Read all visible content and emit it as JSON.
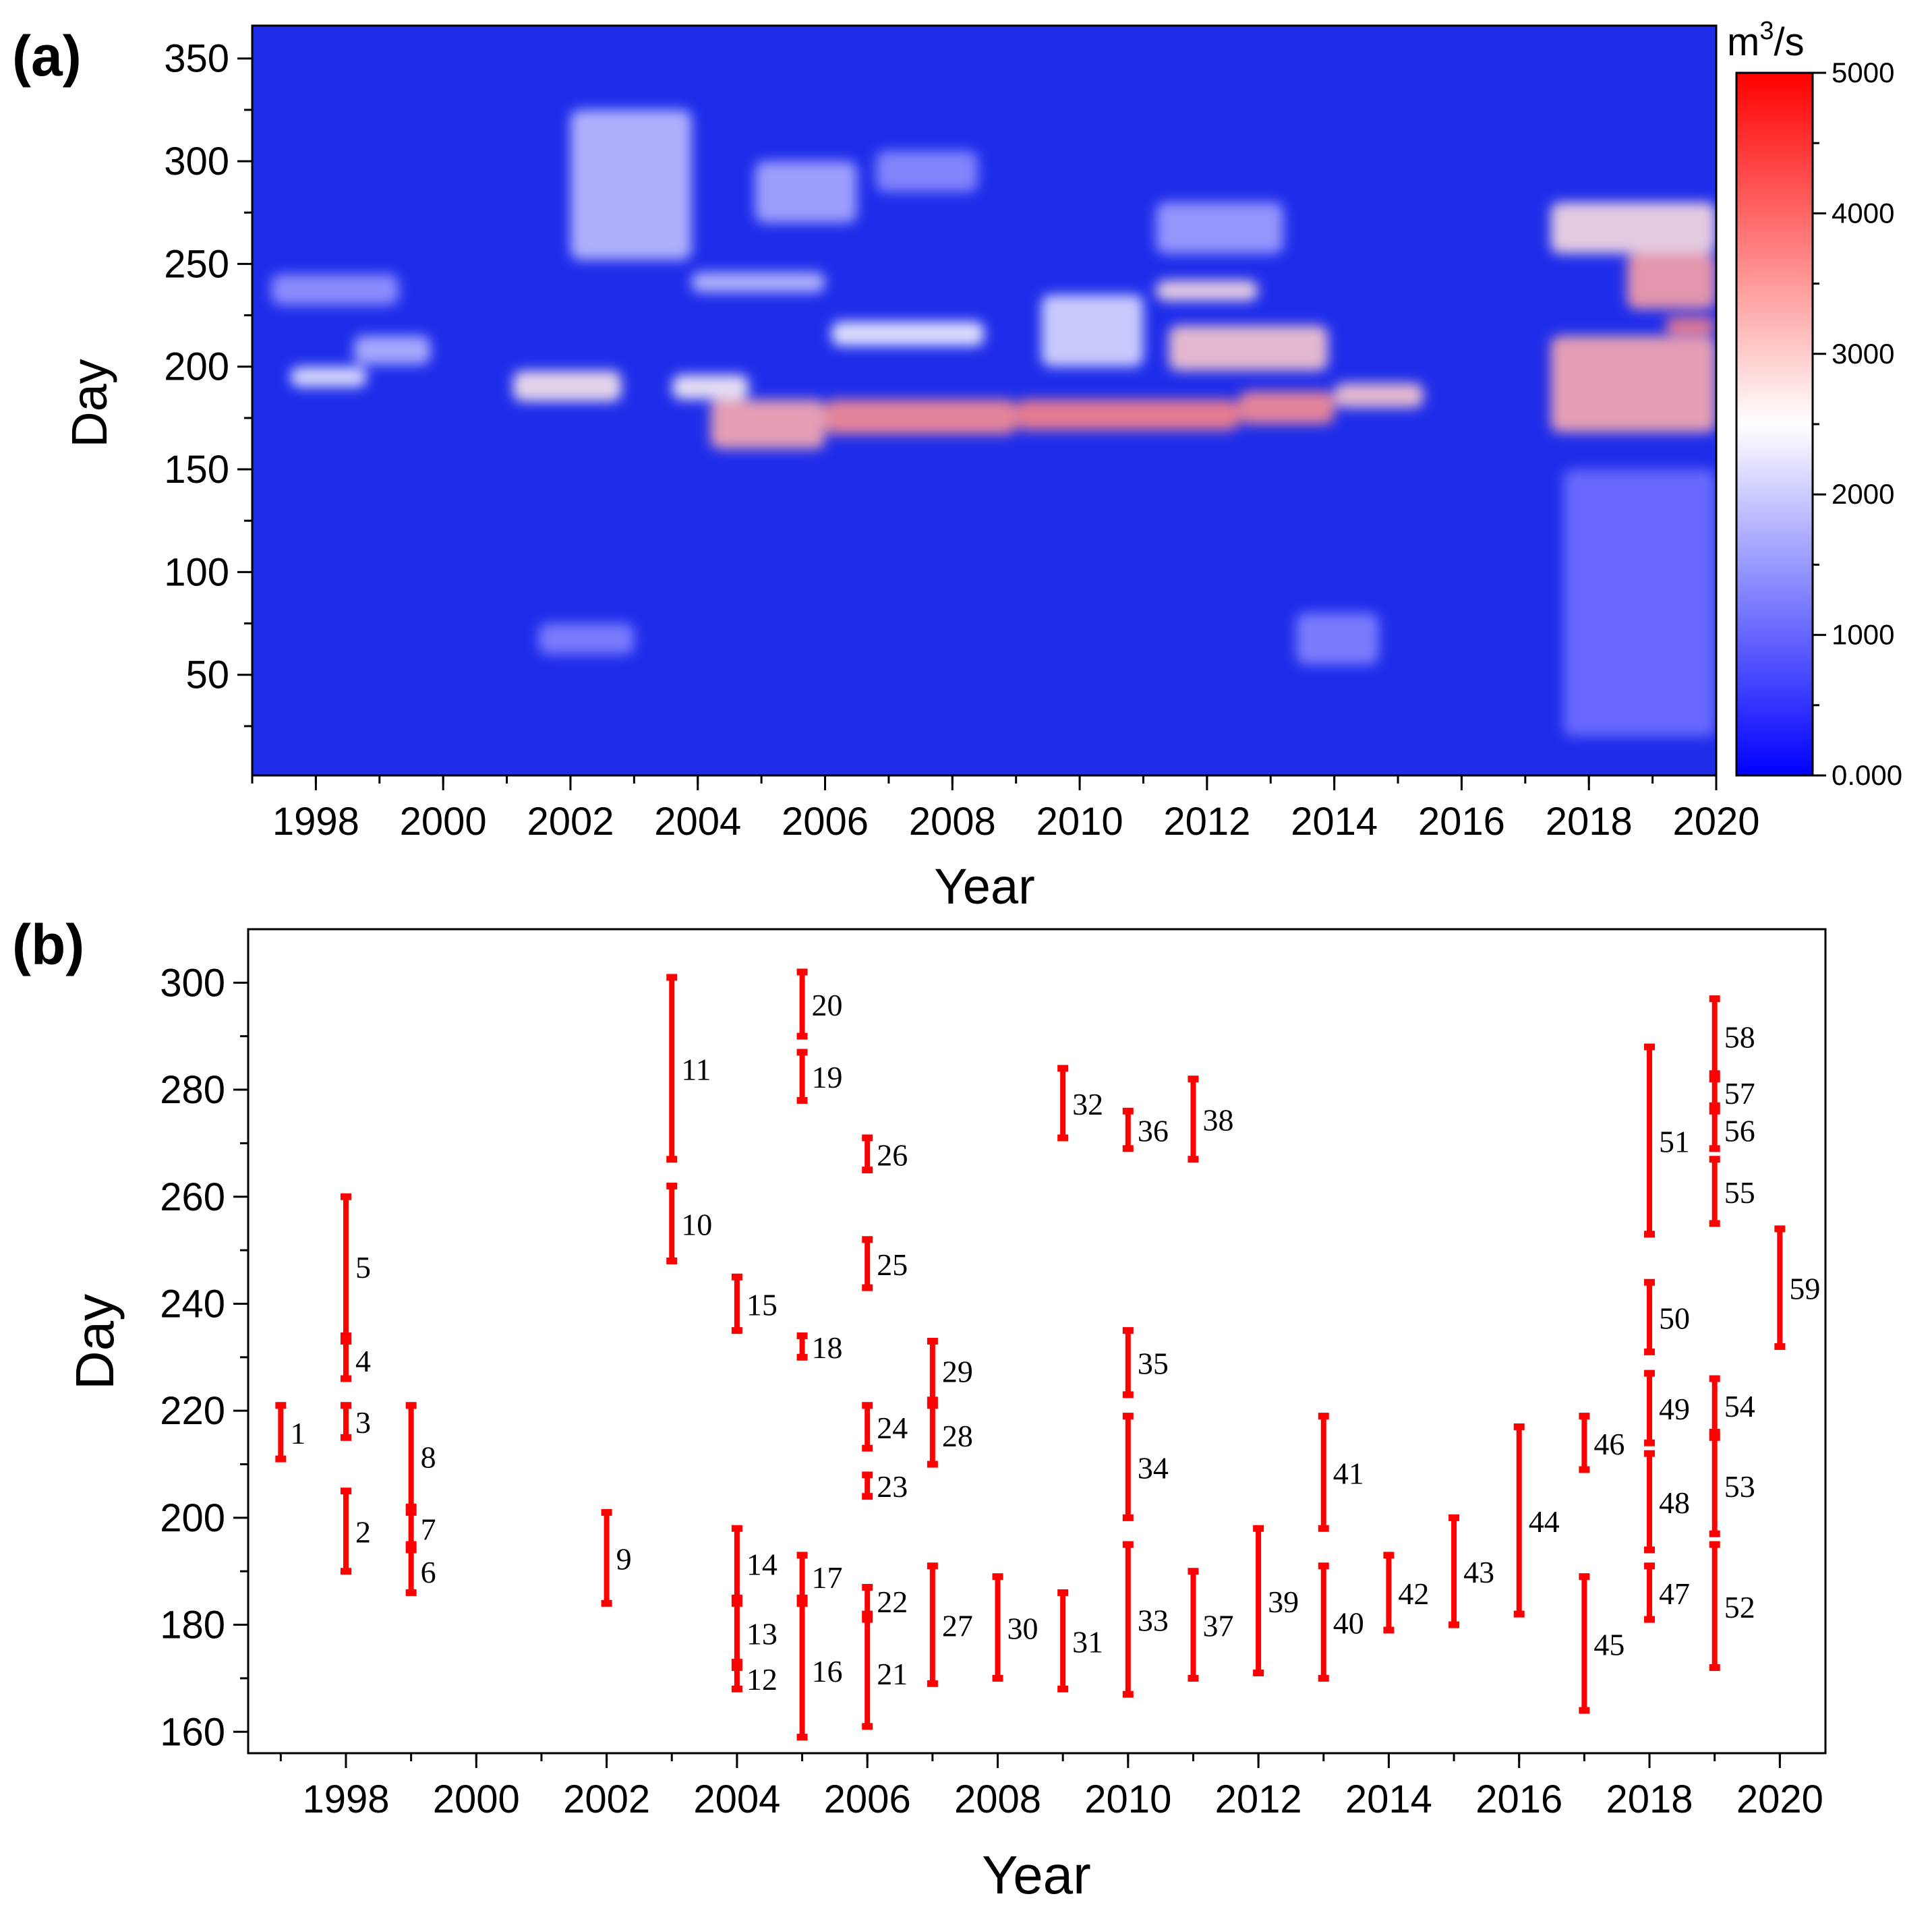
{
  "chart_data": [
    {
      "type": "heatmap",
      "panel_label": "(a)",
      "xlabel": "Year",
      "ylabel": "Day",
      "xlim": [
        1997,
        2020
      ],
      "ylim": [
        1,
        366
      ],
      "xticks": [
        {
          "value": 1998,
          "label": "1998"
        },
        {
          "value": 2000,
          "label": "2000"
        },
        {
          "value": 2002,
          "label": "2002"
        },
        {
          "value": 2004,
          "label": "2004"
        },
        {
          "value": 2006,
          "label": "2006"
        },
        {
          "value": 2008,
          "label": "2008"
        },
        {
          "value": 2010,
          "label": "2010"
        },
        {
          "value": 2012,
          "label": "2012"
        },
        {
          "value": 2014,
          "label": "2014"
        },
        {
          "value": 2016,
          "label": "2016"
        },
        {
          "value": 2018,
          "label": "2018"
        },
        {
          "value": 2020,
          "label": "2020"
        }
      ],
      "yticks": [
        {
          "value": 50,
          "label": "50"
        },
        {
          "value": 100,
          "label": "100"
        },
        {
          "value": 150,
          "label": "150"
        },
        {
          "value": 200,
          "label": "200"
        },
        {
          "value": 250,
          "label": "250"
        },
        {
          "value": 300,
          "label": "300"
        },
        {
          "value": 350,
          "label": "350"
        }
      ],
      "colorbar": {
        "unit_base": "m",
        "unit_sup": "3",
        "unit_tail": "/s",
        "range": [
          0,
          5000
        ],
        "ticks": [
          {
            "value": 0,
            "label": "0.000"
          },
          {
            "value": 1000,
            "label": "1000"
          },
          {
            "value": 2000,
            "label": "2000"
          },
          {
            "value": 3000,
            "label": "3000"
          },
          {
            "value": 4000,
            "label": "4000"
          },
          {
            "value": 5000,
            "label": "5000"
          }
        ],
        "colors": {
          "low": "#0000ff",
          "mid": "#ffffff",
          "high": "#ff0000"
        }
      },
      "background_value": 300,
      "hotspots": [
        {
          "x": [
            2004.2,
            2006.0
          ],
          "day": [
            160,
            184
          ],
          "value": 3300
        },
        {
          "x": [
            2006.0,
            2009.0
          ],
          "day": [
            167,
            184
          ],
          "value": 3600
        },
        {
          "x": [
            2009.0,
            2012.5
          ],
          "day": [
            169,
            184
          ],
          "value": 3700
        },
        {
          "x": [
            2012.5,
            2014.0
          ],
          "day": [
            172,
            188
          ],
          "value": 3600
        },
        {
          "x": [
            2014.0,
            2015.4
          ],
          "day": [
            180,
            192
          ],
          "value": 3000
        },
        {
          "x": [
            2001.1,
            2002.8
          ],
          "day": [
            183,
            198
          ],
          "value": 2700
        },
        {
          "x": [
            2003.6,
            2004.8
          ],
          "day": [
            184,
            196
          ],
          "value": 2600
        },
        {
          "x": [
            1997.6,
            1998.8
          ],
          "day": [
            190,
            200
          ],
          "value": 2300
        },
        {
          "x": [
            1998.6,
            1999.8
          ],
          "day": [
            201,
            215
          ],
          "value": 1800
        },
        {
          "x": [
            1997.3,
            1999.3
          ],
          "day": [
            230,
            245
          ],
          "value": 1500
        },
        {
          "x": [
            2002.0,
            2003.9
          ],
          "day": [
            252,
            325
          ],
          "value": 1900
        },
        {
          "x": [
            2003.9,
            2006.0
          ],
          "day": [
            236,
            246
          ],
          "value": 1900
        },
        {
          "x": [
            2004.9,
            2006.5
          ],
          "day": [
            270,
            300
          ],
          "value": 1700
        },
        {
          "x": [
            2006.1,
            2008.5
          ],
          "day": [
            210,
            222
          ],
          "value": 2400
        },
        {
          "x": [
            2009.4,
            2011.0
          ],
          "day": [
            200,
            235
          ],
          "value": 2200
        },
        {
          "x": [
            2011.2,
            2012.8
          ],
          "day": [
            232,
            242
          ],
          "value": 2800
        },
        {
          "x": [
            2011.4,
            2013.9
          ],
          "day": [
            198,
            220
          ],
          "value": 3000
        },
        {
          "x": [
            2011.2,
            2013.2
          ],
          "day": [
            255,
            280
          ],
          "value": 1600
        },
        {
          "x": [
            2013.4,
            2014.7
          ],
          "day": [
            55,
            80
          ],
          "value": 1300
        },
        {
          "x": [
            2006.8,
            2008.4
          ],
          "day": [
            285,
            305
          ],
          "value": 1400
        },
        {
          "x": [
            2017.4,
            2020.0
          ],
          "day": [
            168,
            215
          ],
          "value": 3300
        },
        {
          "x": [
            2017.4,
            2020.0
          ],
          "day": [
            255,
            280
          ],
          "value": 2800
        },
        {
          "x": [
            2018.6,
            2020.0
          ],
          "day": [
            228,
            255
          ],
          "value": 3400
        },
        {
          "x": [
            2019.2,
            2020.0
          ],
          "day": [
            216,
            224
          ],
          "value": 3700
        },
        {
          "x": [
            2017.6,
            2020.0
          ],
          "day": [
            20,
            150
          ],
          "value": 1100
        },
        {
          "x": [
            2001.5,
            2003.0
          ],
          "day": [
            60,
            75
          ],
          "value": 1300
        }
      ]
    },
    {
      "type": "range",
      "panel_label": "(b)",
      "xlabel": "Year",
      "ylabel": "Day",
      "xlim": [
        1996.5,
        2020.7
      ],
      "ylim": [
        156,
        310
      ],
      "xticks": [
        {
          "value": 1998,
          "label": "1998"
        },
        {
          "value": 2000,
          "label": "2000"
        },
        {
          "value": 2002,
          "label": "2002"
        },
        {
          "value": 2004,
          "label": "2004"
        },
        {
          "value": 2006,
          "label": "2006"
        },
        {
          "value": 2008,
          "label": "2008"
        },
        {
          "value": 2010,
          "label": "2010"
        },
        {
          "value": 2012,
          "label": "2012"
        },
        {
          "value": 2014,
          "label": "2014"
        },
        {
          "value": 2016,
          "label": "2016"
        },
        {
          "value": 2018,
          "label": "2018"
        },
        {
          "value": 2020,
          "label": "2020"
        }
      ],
      "yticks": [
        {
          "value": 160,
          "label": "160"
        },
        {
          "value": 180,
          "label": "180"
        },
        {
          "value": 200,
          "label": "200"
        },
        {
          "value": 220,
          "label": "220"
        },
        {
          "value": 240,
          "label": "240"
        },
        {
          "value": 260,
          "label": "260"
        },
        {
          "value": 280,
          "label": "280"
        },
        {
          "value": 300,
          "label": "300"
        }
      ],
      "color": "#ff0000",
      "events": [
        {
          "id": "1",
          "year": 1997,
          "start": 211,
          "end": 221
        },
        {
          "id": "2",
          "year": 1998,
          "start": 190,
          "end": 205
        },
        {
          "id": "3",
          "year": 1998,
          "start": 215,
          "end": 221
        },
        {
          "id": "4",
          "year": 1998,
          "start": 226,
          "end": 233
        },
        {
          "id": "5",
          "year": 1998,
          "start": 234,
          "end": 260
        },
        {
          "id": "6",
          "year": 1999,
          "start": 186,
          "end": 194
        },
        {
          "id": "7",
          "year": 1999,
          "start": 195,
          "end": 201
        },
        {
          "id": "8",
          "year": 1999,
          "start": 202,
          "end": 221
        },
        {
          "id": "9",
          "year": 2002,
          "start": 184,
          "end": 201
        },
        {
          "id": "10",
          "year": 2003,
          "start": 248,
          "end": 262
        },
        {
          "id": "11",
          "year": 2003,
          "start": 267,
          "end": 301
        },
        {
          "id": "12",
          "year": 2004,
          "start": 168,
          "end": 172
        },
        {
          "id": "13",
          "year": 2004,
          "start": 173,
          "end": 184
        },
        {
          "id": "14",
          "year": 2004,
          "start": 185,
          "end": 198
        },
        {
          "id": "15",
          "year": 2004,
          "start": 235,
          "end": 245
        },
        {
          "id": "16",
          "year": 2005,
          "start": 159,
          "end": 184
        },
        {
          "id": "17",
          "year": 2005,
          "start": 185,
          "end": 193
        },
        {
          "id": "18",
          "year": 2005,
          "start": 230,
          "end": 234
        },
        {
          "id": "19",
          "year": 2005,
          "start": 278,
          "end": 287
        },
        {
          "id": "20",
          "year": 2005,
          "start": 290,
          "end": 302
        },
        {
          "id": "21",
          "year": 2006,
          "start": 161,
          "end": 181
        },
        {
          "id": "22",
          "year": 2006,
          "start": 182,
          "end": 187
        },
        {
          "id": "23",
          "year": 2006,
          "start": 204,
          "end": 208
        },
        {
          "id": "24",
          "year": 2006,
          "start": 213,
          "end": 221
        },
        {
          "id": "25",
          "year": 2006,
          "start": 243,
          "end": 252
        },
        {
          "id": "26",
          "year": 2006,
          "start": 265,
          "end": 271
        },
        {
          "id": "27",
          "year": 2007,
          "start": 169,
          "end": 191
        },
        {
          "id": "28",
          "year": 2007,
          "start": 210,
          "end": 221
        },
        {
          "id": "29",
          "year": 2007,
          "start": 222,
          "end": 233
        },
        {
          "id": "30",
          "year": 2008,
          "start": 170,
          "end": 189
        },
        {
          "id": "31",
          "year": 2009,
          "start": 168,
          "end": 186
        },
        {
          "id": "32",
          "year": 2009,
          "start": 271,
          "end": 284
        },
        {
          "id": "33",
          "year": 2010,
          "start": 167,
          "end": 195
        },
        {
          "id": "34",
          "year": 2010,
          "start": 200,
          "end": 219
        },
        {
          "id": "35",
          "year": 2010,
          "start": 223,
          "end": 235
        },
        {
          "id": "36",
          "year": 2010,
          "start": 269,
          "end": 276
        },
        {
          "id": "37",
          "year": 2011,
          "start": 170,
          "end": 190
        },
        {
          "id": "38",
          "year": 2011,
          "start": 267,
          "end": 282
        },
        {
          "id": "39",
          "year": 2012,
          "start": 171,
          "end": 198
        },
        {
          "id": "40",
          "year": 2013,
          "start": 170,
          "end": 191
        },
        {
          "id": "41",
          "year": 2013,
          "start": 198,
          "end": 219
        },
        {
          "id": "42",
          "year": 2014,
          "start": 179,
          "end": 193
        },
        {
          "id": "43",
          "year": 2015,
          "start": 180,
          "end": 200
        },
        {
          "id": "44",
          "year": 2016,
          "start": 182,
          "end": 217
        },
        {
          "id": "45",
          "year": 2017,
          "start": 164,
          "end": 189
        },
        {
          "id": "46",
          "year": 2017,
          "start": 209,
          "end": 219
        },
        {
          "id": "47",
          "year": 2018,
          "start": 181,
          "end": 191
        },
        {
          "id": "48",
          "year": 2018,
          "start": 194,
          "end": 212
        },
        {
          "id": "49",
          "year": 2018,
          "start": 214,
          "end": 227
        },
        {
          "id": "50",
          "year": 2018,
          "start": 231,
          "end": 244
        },
        {
          "id": "51",
          "year": 2018,
          "start": 253,
          "end": 288
        },
        {
          "id": "52",
          "year": 2019,
          "start": 172,
          "end": 195
        },
        {
          "id": "53",
          "year": 2019,
          "start": 197,
          "end": 215
        },
        {
          "id": "54",
          "year": 2019,
          "start": 216,
          "end": 226
        },
        {
          "id": "55",
          "year": 2019,
          "start": 255,
          "end": 267
        },
        {
          "id": "56",
          "year": 2019,
          "start": 269,
          "end": 276
        },
        {
          "id": "57",
          "year": 2019,
          "start": 277,
          "end": 282
        },
        {
          "id": "58",
          "year": 2019,
          "start": 283,
          "end": 297
        },
        {
          "id": "59",
          "year": 2020,
          "start": 232,
          "end": 254
        }
      ]
    }
  ]
}
